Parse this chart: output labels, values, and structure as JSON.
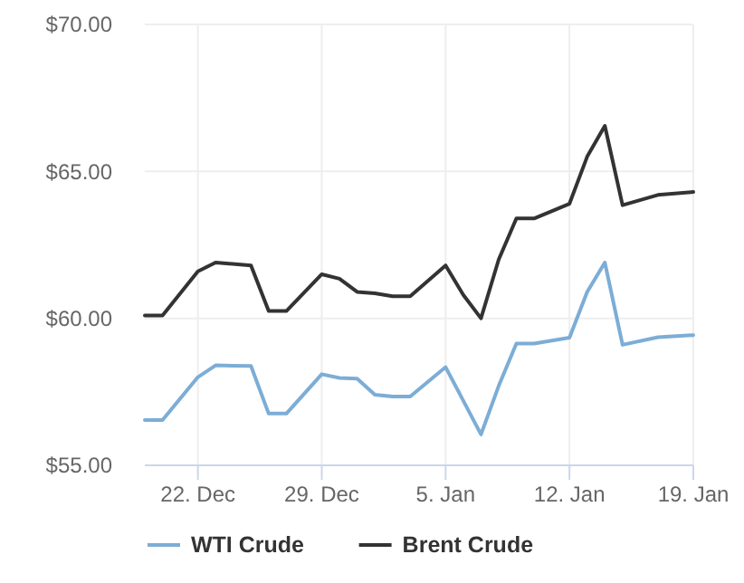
{
  "chart_data": {
    "type": "line",
    "categories": [
      null,
      null,
      null,
      "22. Dec",
      null,
      null,
      null,
      null,
      null,
      null,
      "29. Dec",
      null,
      null,
      null,
      null,
      null,
      null,
      "5. Jan",
      null,
      null,
      null,
      null,
      null,
      null,
      "12. Jan",
      null,
      null,
      null,
      null,
      null,
      null,
      "19. Jan"
    ],
    "series": [
      {
        "name": "WTI Crude",
        "color": "#7cadd6",
        "values": [
          56.54,
          56.54,
          null,
          58.0,
          58.4,
          null,
          58.38,
          56.76,
          56.76,
          null,
          58.1,
          57.97,
          57.95,
          57.4,
          57.34,
          57.34,
          null,
          58.34,
          57.2,
          56.05,
          57.7,
          59.14,
          59.14,
          null,
          59.34,
          60.9,
          61.9,
          59.1,
          null,
          59.36,
          null,
          59.43
        ]
      },
      {
        "name": "Brent Crude",
        "color": "#333333",
        "values": [
          60.1,
          60.1,
          null,
          61.6,
          61.9,
          null,
          61.8,
          60.25,
          60.25,
          null,
          61.5,
          61.35,
          60.9,
          60.85,
          60.75,
          60.75,
          null,
          61.8,
          60.8,
          60.0,
          62.0,
          63.4,
          63.4,
          null,
          63.9,
          65.5,
          66.55,
          63.85,
          null,
          64.2,
          null,
          64.3
        ]
      }
    ],
    "ylim": [
      55,
      70
    ],
    "yticks": [
      {
        "value": 55,
        "label": "$55.00"
      },
      {
        "value": 60,
        "label": "$60.00"
      },
      {
        "value": 65,
        "label": "$65.00"
      },
      {
        "value": 70,
        "label": "$70.00"
      }
    ],
    "grid": true,
    "legend": "bottom",
    "line_style": "solid",
    "marker": "none"
  }
}
